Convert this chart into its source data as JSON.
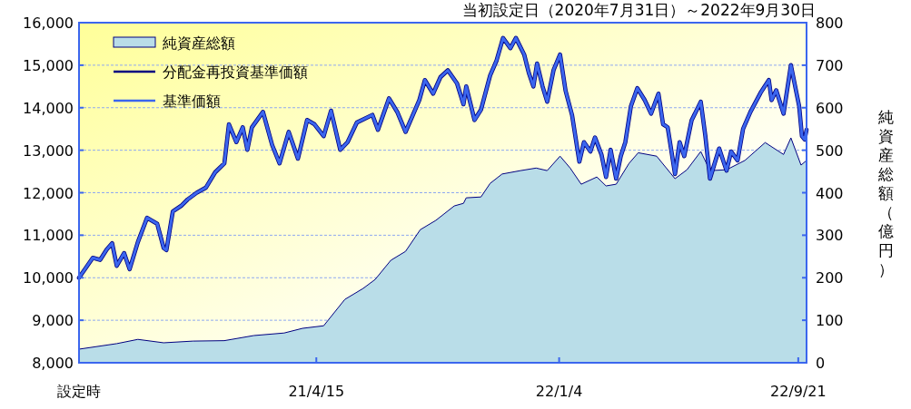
{
  "chart_data": {
    "type": "line",
    "title": "当初設定日（2020年7月31日）～2022年9月30日",
    "y2label": "純資産総額（億円）",
    "xlim": [
      "2020-07-31",
      "2022-09-30"
    ],
    "xticks": [
      {
        "value": "2020-07-31",
        "label": "設定時"
      },
      {
        "value": "2021-04-15",
        "label": "21/4/15"
      },
      {
        "value": "2022-01-04",
        "label": "22/1/4"
      },
      {
        "value": "2022-09-21",
        "label": "22/9/21"
      }
    ],
    "ylim": [
      8000,
      16000
    ],
    "yticks": [
      {
        "value": 8000,
        "label": "8,000"
      },
      {
        "value": 9000,
        "label": "9,000"
      },
      {
        "value": 10000,
        "label": "10,000"
      },
      {
        "value": 11000,
        "label": "11,000"
      },
      {
        "value": 12000,
        "label": "12,000"
      },
      {
        "value": 13000,
        "label": "13,000"
      },
      {
        "value": 14000,
        "label": "14,000"
      },
      {
        "value": 15000,
        "label": "15,000"
      },
      {
        "value": 16000,
        "label": "16,000"
      }
    ],
    "y2lim": [
      0,
      800
    ],
    "y2ticks": [
      0,
      100,
      200,
      300,
      400,
      500,
      600,
      700,
      800
    ],
    "grid": "y",
    "legend": "top left",
    "series": [
      {
        "name": "純資産総額",
        "type": "area",
        "axis": "y2",
        "color": "#b9dde8",
        "x": [
          "2020-07-31",
          "2020-09-10",
          "2020-10-03",
          "2020-10-31",
          "2020-12-02",
          "2021-01-05",
          "2021-02-06",
          "2021-03-11",
          "2021-03-31",
          "2021-04-23",
          "2021-05-16",
          "2021-06-05",
          "2021-06-18",
          "2021-07-05",
          "2021-07-21",
          "2021-08-06",
          "2021-08-23",
          "2021-09-12",
          "2021-09-22",
          "2021-09-25",
          "2021-10-11",
          "2021-10-21",
          "2021-11-03",
          "2021-11-23",
          "2021-12-10",
          "2021-12-22",
          "2022-01-05",
          "2022-01-16",
          "2022-01-28",
          "2022-02-14",
          "2022-02-24",
          "2022-03-07",
          "2022-03-21",
          "2022-03-31",
          "2022-04-20",
          "2022-05-10",
          "2022-05-23",
          "2022-06-07",
          "2022-06-17",
          "2022-07-05",
          "2022-07-25",
          "2022-08-16",
          "2022-09-05",
          "2022-09-13",
          "2022-09-24",
          "2022-09-30"
        ],
        "values": [
          32,
          45,
          55,
          47,
          51,
          52,
          64,
          70,
          81,
          87,
          149,
          175,
          196,
          241,
          262,
          313,
          335,
          369,
          375,
          388,
          390,
          422,
          444,
          452,
          458,
          452,
          486,
          458,
          420,
          437,
          416,
          420,
          469,
          494,
          486,
          433,
          454,
          497,
          452,
          454,
          476,
          518,
          490,
          529,
          465,
          476
        ]
      },
      {
        "name": "分配金再投資基準価額",
        "type": "line",
        "color": "#000080",
        "x": [
          "2020-07-31",
          "2020-08-15",
          "2020-08-23",
          "2020-08-30",
          "2020-09-05",
          "2020-09-10",
          "2020-09-18",
          "2020-09-24",
          "2020-10-03",
          "2020-10-13",
          "2020-10-24",
          "2020-10-31",
          "2020-11-03",
          "2020-11-10",
          "2020-11-19",
          "2020-11-26",
          "2020-12-06",
          "2020-12-16",
          "2020-12-26",
          "2021-01-05",
          "2021-01-10",
          "2021-01-18",
          "2021-01-25",
          "2021-01-30",
          "2021-02-04",
          "2021-02-16",
          "2021-02-26",
          "2021-03-06",
          "2021-03-16",
          "2021-03-26",
          "2021-04-05",
          "2021-04-13",
          "2021-04-23",
          "2021-05-01",
          "2021-05-11",
          "2021-05-19",
          "2021-05-29",
          "2021-06-15",
          "2021-06-21",
          "2021-07-03",
          "2021-07-12",
          "2021-07-21",
          "2021-08-05",
          "2021-08-11",
          "2021-08-20",
          "2021-08-28",
          "2021-09-05",
          "2021-09-15",
          "2021-09-22",
          "2021-09-25",
          "2021-10-04",
          "2021-10-11",
          "2021-10-21",
          "2021-10-28",
          "2021-11-04",
          "2021-11-12",
          "2021-11-18",
          "2021-11-27",
          "2021-12-02",
          "2021-12-07",
          "2021-12-11",
          "2021-12-17",
          "2021-12-22",
          "2021-12-29",
          "2022-01-05",
          "2022-01-11",
          "2022-01-18",
          "2022-01-26",
          "2022-01-31",
          "2022-02-07",
          "2022-02-12",
          "2022-02-19",
          "2022-02-24",
          "2022-03-01",
          "2022-03-07",
          "2022-03-12",
          "2022-03-17",
          "2022-03-23",
          "2022-03-30",
          "2022-04-07",
          "2022-04-14",
          "2022-04-22",
          "2022-04-27",
          "2022-05-02",
          "2022-05-10",
          "2022-05-15",
          "2022-05-20",
          "2022-05-28",
          "2022-06-07",
          "2022-06-12",
          "2022-06-17",
          "2022-06-27",
          "2022-07-05",
          "2022-07-10",
          "2022-07-17",
          "2022-07-23",
          "2022-07-31",
          "2022-08-11",
          "2022-08-20",
          "2022-08-23",
          "2022-08-28",
          "2022-09-05",
          "2022-09-13",
          "2022-09-22",
          "2022-09-25",
          "2022-09-28",
          "2022-09-30"
        ],
        "values": [
          10000,
          10470,
          10420,
          10660,
          10810,
          10280,
          10580,
          10200,
          10840,
          11410,
          11270,
          10700,
          10650,
          11560,
          11690,
          11840,
          12000,
          12120,
          12480,
          12690,
          13610,
          13190,
          13540,
          13010,
          13540,
          13900,
          13120,
          12690,
          13430,
          12800,
          13710,
          13610,
          13330,
          13930,
          13010,
          13190,
          13650,
          13830,
          13480,
          14220,
          13900,
          13430,
          14180,
          14650,
          14330,
          14720,
          14880,
          14570,
          14080,
          14500,
          13710,
          13950,
          14760,
          15110,
          15640,
          15400,
          15640,
          15250,
          14820,
          14500,
          15040,
          14500,
          14140,
          14890,
          15250,
          14400,
          13830,
          12730,
          13190,
          12970,
          13300,
          12900,
          12370,
          13010,
          12330,
          12860,
          13190,
          14030,
          14460,
          14180,
          13860,
          14330,
          13610,
          13540,
          12440,
          13190,
          12860,
          13700,
          14140,
          13330,
          12330,
          13040,
          12520,
          12970,
          12760,
          13500,
          13900,
          14350,
          14650,
          14180,
          14410,
          13860,
          15000,
          14030,
          13330,
          13250,
          13480
        ]
      },
      {
        "name": "基準価額",
        "type": "line",
        "color": "#3b66ee",
        "x": [
          "2020-07-31",
          "2020-08-15",
          "2020-08-23",
          "2020-08-30",
          "2020-09-05",
          "2020-09-10",
          "2020-09-18",
          "2020-09-24",
          "2020-10-03",
          "2020-10-13",
          "2020-10-24",
          "2020-10-31",
          "2020-11-03",
          "2020-11-10",
          "2020-11-19",
          "2020-11-26",
          "2020-12-06",
          "2020-12-16",
          "2020-12-26",
          "2021-01-05",
          "2021-01-10",
          "2021-01-18",
          "2021-01-25",
          "2021-01-30",
          "2021-02-04",
          "2021-02-16",
          "2021-02-26",
          "2021-03-06",
          "2021-03-16",
          "2021-03-26",
          "2021-04-05",
          "2021-04-13",
          "2021-04-23",
          "2021-05-01",
          "2021-05-11",
          "2021-05-19",
          "2021-05-29",
          "2021-06-15",
          "2021-06-21",
          "2021-07-03",
          "2021-07-12",
          "2021-07-21",
          "2021-08-05",
          "2021-08-11",
          "2021-08-20",
          "2021-08-28",
          "2021-09-05",
          "2021-09-15",
          "2021-09-22",
          "2021-09-25",
          "2021-10-04",
          "2021-10-11",
          "2021-10-21",
          "2021-10-28",
          "2021-11-04",
          "2021-11-12",
          "2021-11-18",
          "2021-11-27",
          "2021-12-02",
          "2021-12-07",
          "2021-12-11",
          "2021-12-17",
          "2021-12-22",
          "2021-12-29",
          "2022-01-05",
          "2022-01-11",
          "2022-01-18",
          "2022-01-26",
          "2022-01-31",
          "2022-02-07",
          "2022-02-12",
          "2022-02-19",
          "2022-02-24",
          "2022-03-01",
          "2022-03-07",
          "2022-03-12",
          "2022-03-17",
          "2022-03-23",
          "2022-03-30",
          "2022-04-07",
          "2022-04-14",
          "2022-04-22",
          "2022-04-27",
          "2022-05-02",
          "2022-05-10",
          "2022-05-15",
          "2022-05-20",
          "2022-05-28",
          "2022-06-07",
          "2022-06-12",
          "2022-06-17",
          "2022-06-27",
          "2022-07-05",
          "2022-07-10",
          "2022-07-17",
          "2022-07-23",
          "2022-07-31",
          "2022-08-11",
          "2022-08-20",
          "2022-08-23",
          "2022-08-28",
          "2022-09-05",
          "2022-09-13",
          "2022-09-22",
          "2022-09-25",
          "2022-09-28",
          "2022-09-30"
        ],
        "values": [
          10000,
          10470,
          10420,
          10660,
          10810,
          10280,
          10580,
          10200,
          10840,
          11410,
          11270,
          10700,
          10650,
          11560,
          11690,
          11840,
          12000,
          12120,
          12480,
          12690,
          13610,
          13190,
          13540,
          13010,
          13540,
          13900,
          13120,
          12690,
          13430,
          12800,
          13710,
          13610,
          13330,
          13930,
          13010,
          13190,
          13650,
          13830,
          13480,
          14220,
          13900,
          13430,
          14180,
          14650,
          14330,
          14720,
          14880,
          14570,
          14080,
          14500,
          13710,
          13950,
          14760,
          15110,
          15640,
          15400,
          15640,
          15250,
          14820,
          14500,
          15040,
          14500,
          14140,
          14890,
          15250,
          14400,
          13830,
          12730,
          13190,
          12970,
          13300,
          12900,
          12370,
          13010,
          12330,
          12860,
          13190,
          14030,
          14460,
          14180,
          13860,
          14330,
          13610,
          13540,
          12440,
          13190,
          12860,
          13700,
          14140,
          13330,
          12330,
          13040,
          12520,
          12970,
          12760,
          13500,
          13900,
          14350,
          14650,
          14180,
          14410,
          13860,
          15000,
          14030,
          13330,
          13250,
          13480
        ]
      }
    ]
  }
}
